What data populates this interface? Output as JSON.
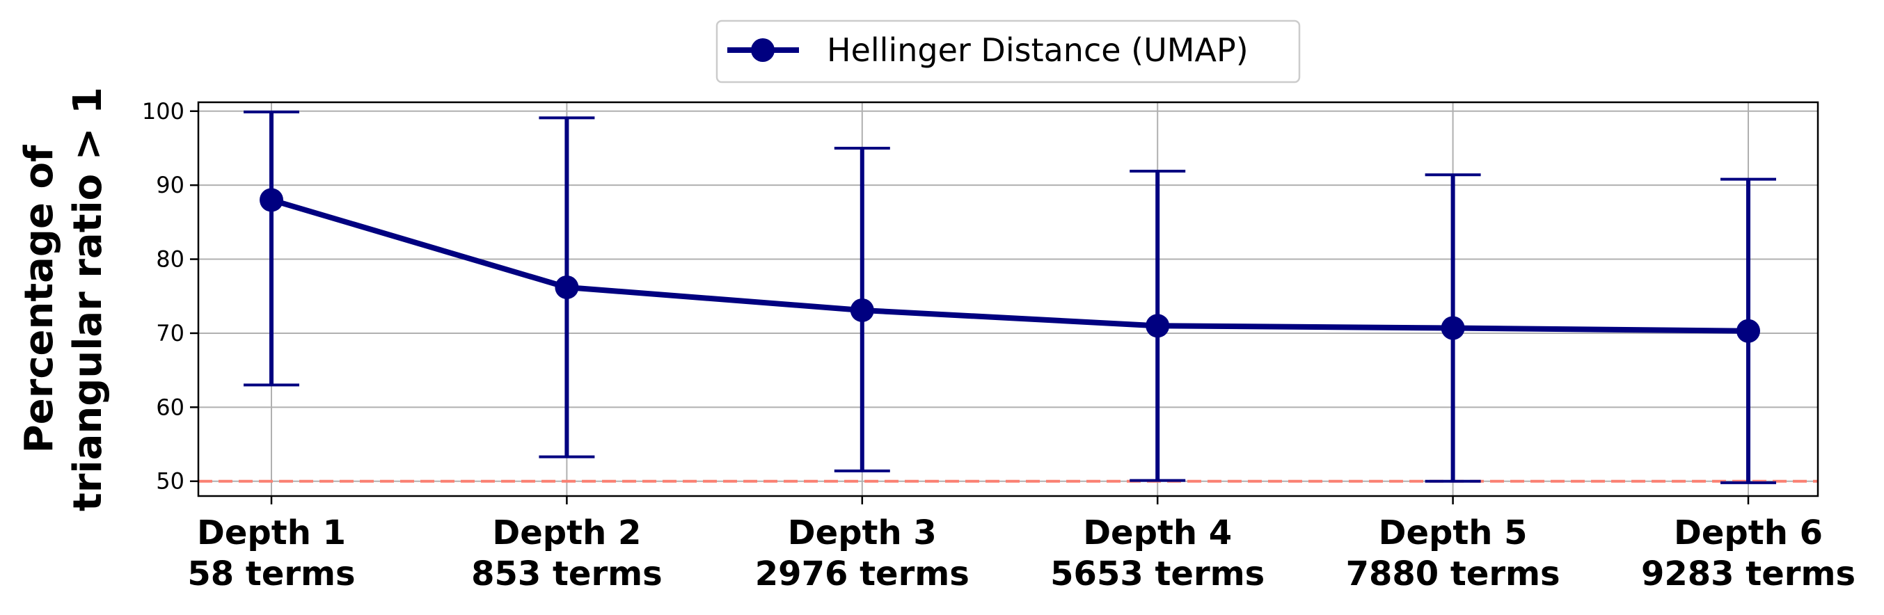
{
  "chart_data": {
    "type": "line",
    "categories": [
      [
        "Depth 1",
        "58 terms"
      ],
      [
        "Depth 2",
        "853 terms"
      ],
      [
        "Depth 3",
        "2976 terms"
      ],
      [
        "Depth 4",
        "5653 terms"
      ],
      [
        "Depth 5",
        "7880 terms"
      ],
      [
        "Depth 6",
        "9283 terms"
      ]
    ],
    "series": [
      {
        "name": "Hellinger Distance (UMAP)",
        "values": [
          88.0,
          76.2,
          73.1,
          71.0,
          70.7,
          70.3
        ],
        "error_low": [
          63.0,
          53.3,
          51.4,
          50.1,
          50.0,
          49.8
        ],
        "error_high": [
          99.9,
          99.1,
          95.0,
          91.9,
          91.4,
          90.8
        ],
        "color": "#000080"
      }
    ],
    "ylabel": [
      "Percentage of",
      "triangular ratio > 1"
    ],
    "ylim": [
      48.0,
      101.2
    ],
    "yticks": [
      50,
      60,
      70,
      80,
      90,
      100
    ],
    "reference_line": {
      "y": 50,
      "color": "#fa8072",
      "style": "dashed"
    },
    "grid": true,
    "legend_position": "top-center"
  }
}
